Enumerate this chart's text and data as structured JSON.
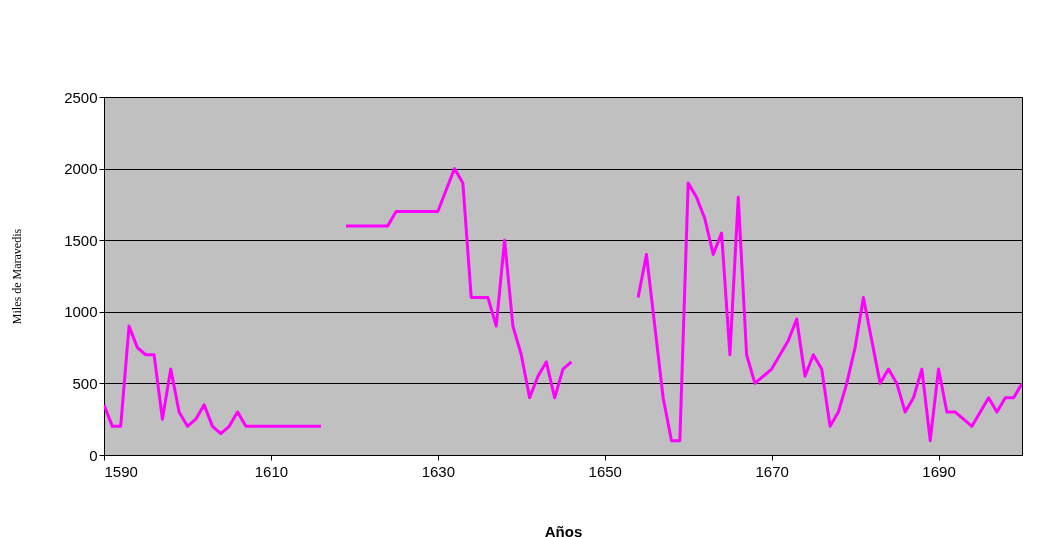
{
  "chart_data": {
    "type": "line",
    "xlabel": "Años",
    "ylabel": "Miles de Maravedis",
    "x": [
      1590,
      1591,
      1592,
      1593,
      1594,
      1595,
      1596,
      1597,
      1598,
      1599,
      1600,
      1601,
      1602,
      1603,
      1604,
      1605,
      1606,
      1607,
      1608,
      1609,
      1610,
      1611,
      1612,
      1613,
      1614,
      1615,
      1616,
      1617,
      1618,
      1619,
      1620,
      1621,
      1622,
      1623,
      1624,
      1625,
      1626,
      1627,
      1628,
      1629,
      1630,
      1631,
      1632,
      1633,
      1634,
      1635,
      1636,
      1637,
      1638,
      1639,
      1640,
      1641,
      1642,
      1643,
      1644,
      1645,
      1646,
      1647,
      1648,
      1649,
      1650,
      1651,
      1652,
      1653,
      1654,
      1655,
      1656,
      1657,
      1658,
      1659,
      1660,
      1661,
      1662,
      1663,
      1664,
      1665,
      1666,
      1667,
      1668,
      1669,
      1670,
      1671,
      1672,
      1673,
      1674,
      1675,
      1676,
      1677,
      1678,
      1679,
      1680,
      1681,
      1682,
      1683,
      1684,
      1685,
      1686,
      1687,
      1688,
      1689,
      1690,
      1691,
      1692,
      1693,
      1694,
      1695,
      1696,
      1697,
      1698,
      1699,
      1700
    ],
    "series": [
      {
        "color": "#ff00ff",
        "values": [
          350,
          200,
          200,
          900,
          750,
          700,
          700,
          250,
          600,
          300,
          200,
          250,
          350,
          200,
          150,
          200,
          300,
          200,
          200,
          200,
          200,
          200,
          200,
          200,
          200,
          200,
          200,
          null,
          null,
          1600,
          1600,
          1600,
          1600,
          1600,
          1600,
          1700,
          1700,
          1700,
          1700,
          1700,
          1700,
          1850,
          2000,
          1900,
          1100,
          1100,
          1100,
          900,
          1500,
          900,
          700,
          400,
          550,
          650,
          400,
          600,
          650,
          null,
          null,
          null,
          null,
          null,
          null,
          null,
          1100,
          1400,
          900,
          400,
          100,
          100,
          1900,
          1800,
          1650,
          1400,
          1550,
          700,
          1800,
          700,
          500,
          550,
          600,
          700,
          800,
          950,
          550,
          700,
          600,
          200,
          300,
          500,
          750,
          1100,
          800,
          500,
          600,
          500,
          300,
          400,
          600,
          100,
          600,
          300,
          300,
          250,
          200,
          300,
          400,
          300,
          400,
          400,
          500
        ]
      }
    ],
    "xlim": [
      1590,
      1700
    ],
    "xticks": [
      1590,
      1610,
      1630,
      1650,
      1670,
      1690
    ],
    "ylim": [
      0,
      2500
    ],
    "yticks": [
      0,
      500,
      1000,
      1500,
      2000,
      2500
    ],
    "grid": "y",
    "legend": false,
    "marker": "none",
    "line_style": "solid"
  }
}
